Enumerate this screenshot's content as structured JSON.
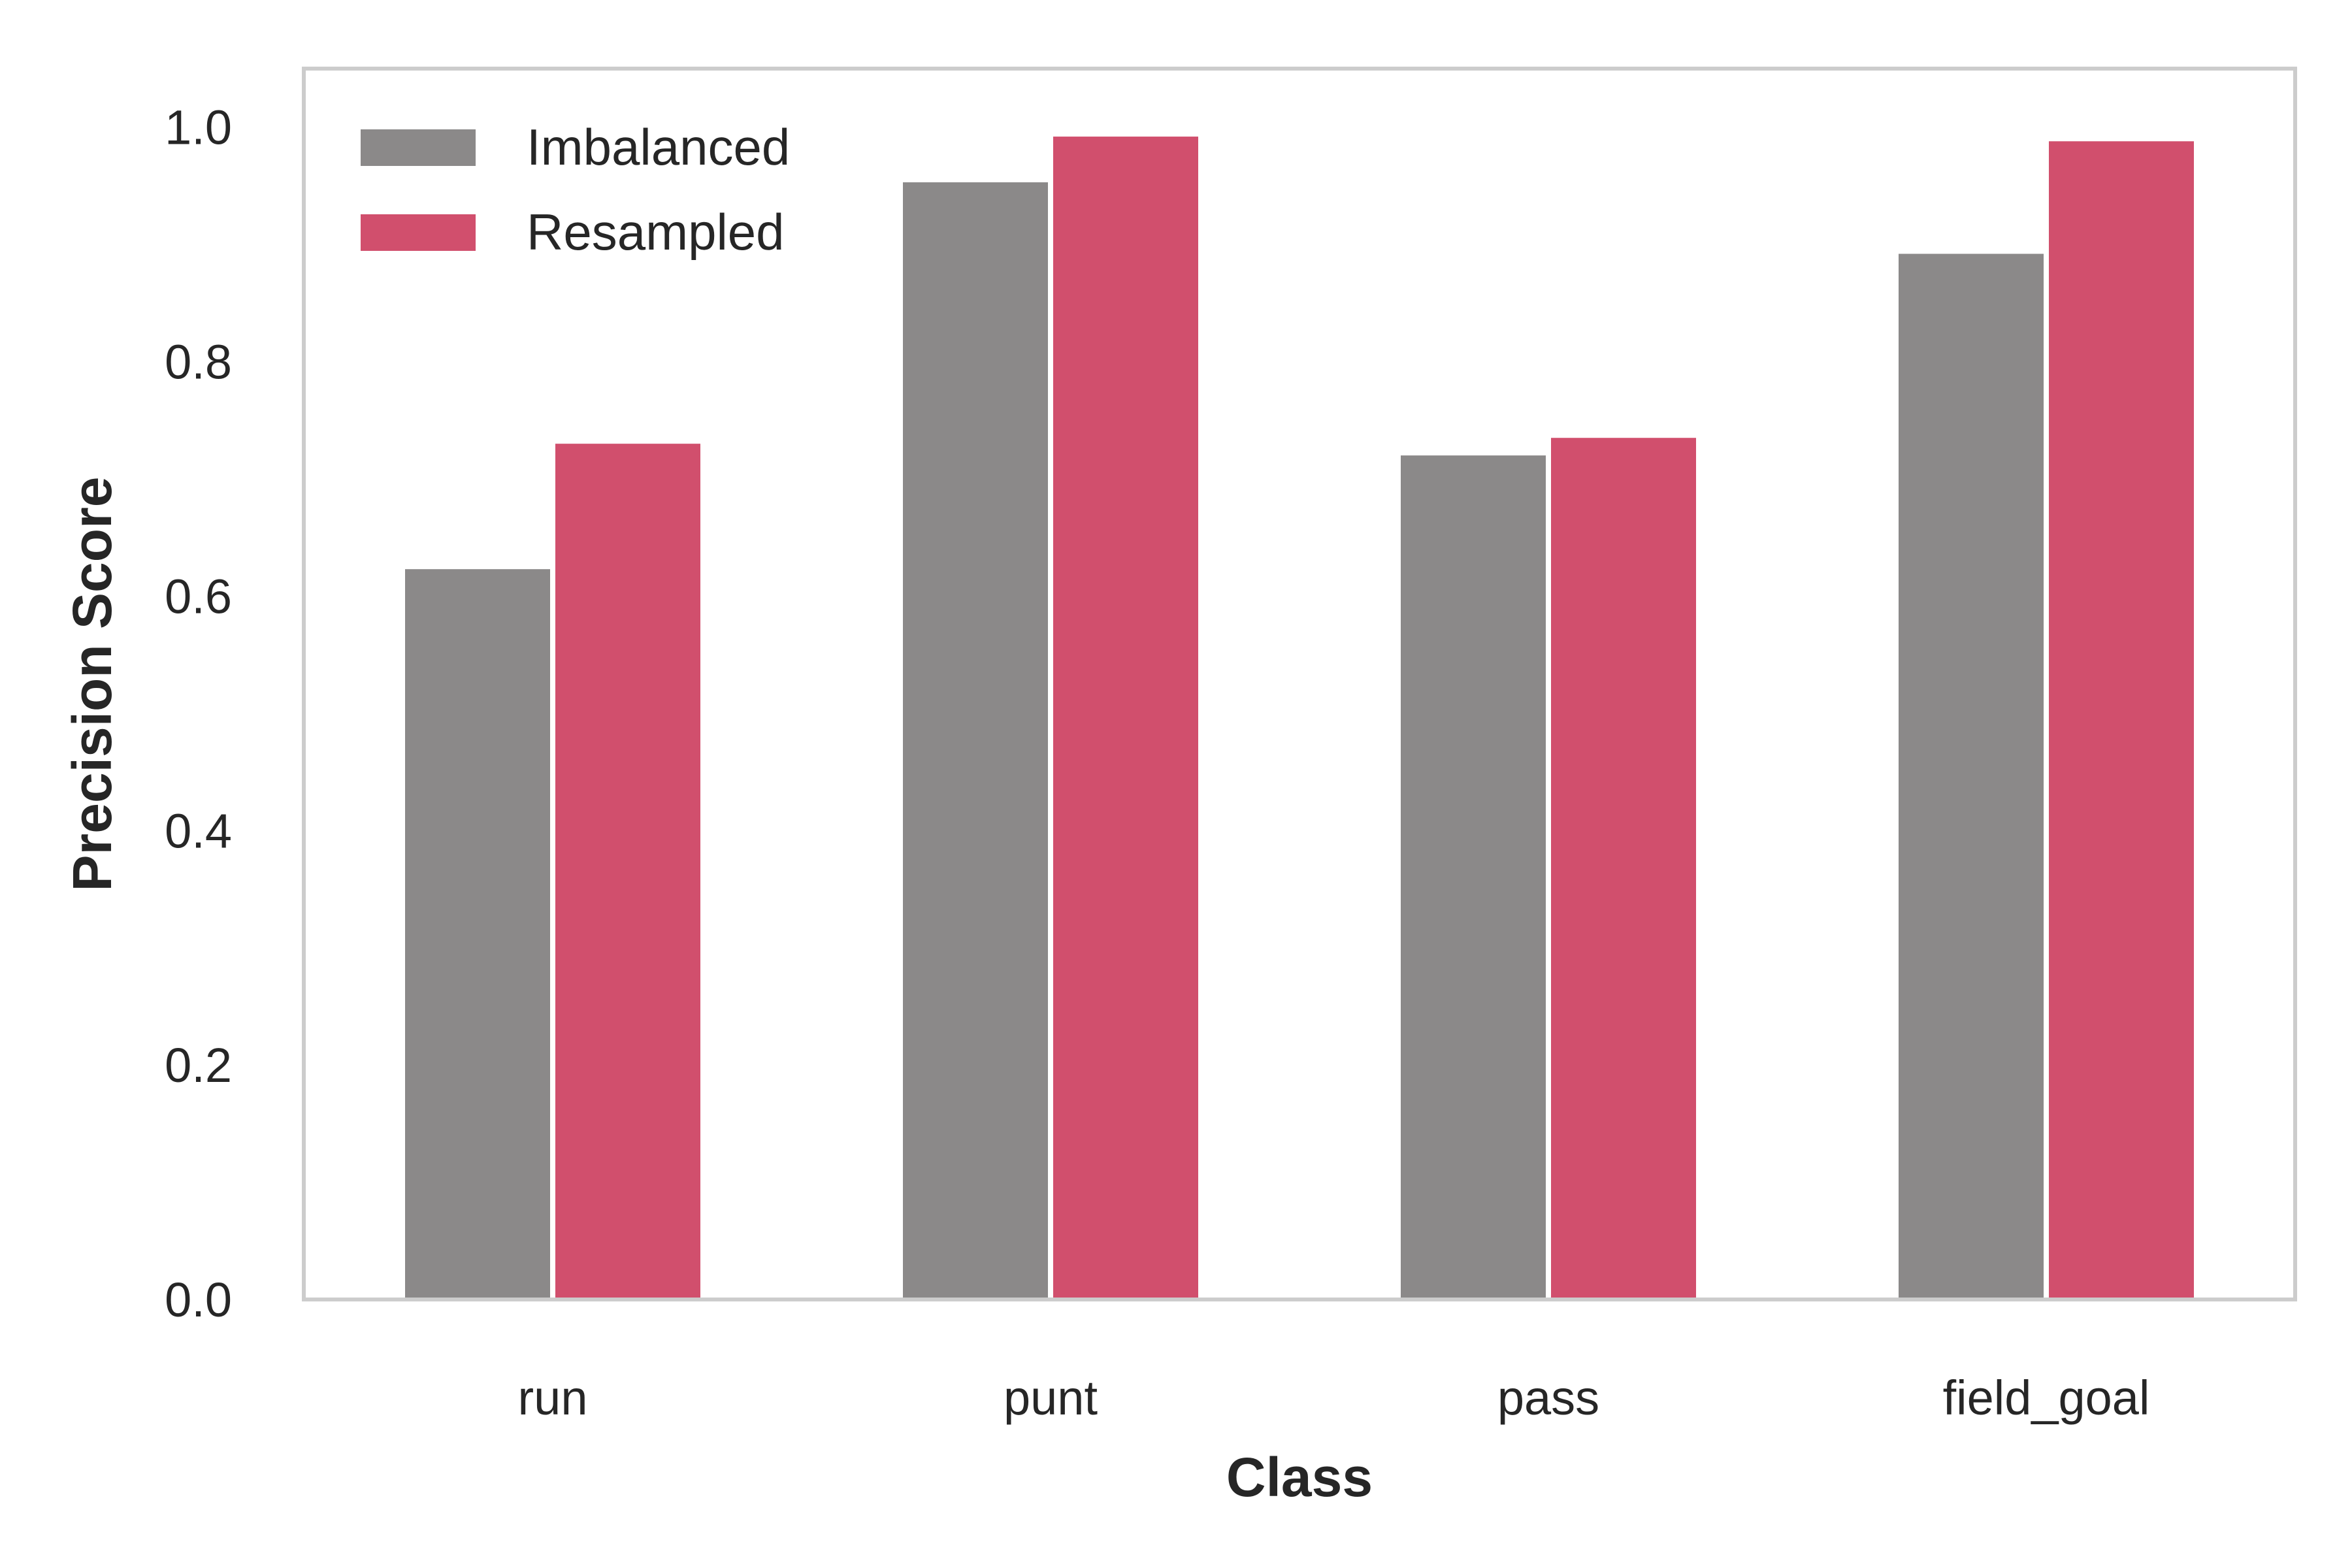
{
  "chart_data": {
    "type": "bar",
    "title": "",
    "xlabel": "Class",
    "ylabel": "Precision Score",
    "categories": [
      "run",
      "punt",
      "pass",
      "field_goal"
    ],
    "series": [
      {
        "name": "Imbalanced",
        "color": "#8b8989",
        "values": [
          0.623,
          0.953,
          0.72,
          0.892
        ]
      },
      {
        "name": "Resampled",
        "color": "#d14f6d",
        "values": [
          0.73,
          0.992,
          0.735,
          0.988
        ]
      }
    ],
    "ylim": [
      0,
      1.05
    ],
    "yticks": [
      "0.0",
      "0.2",
      "0.4",
      "0.6",
      "0.8",
      "1.0"
    ],
    "grid": false,
    "legend_position": "top-left"
  }
}
